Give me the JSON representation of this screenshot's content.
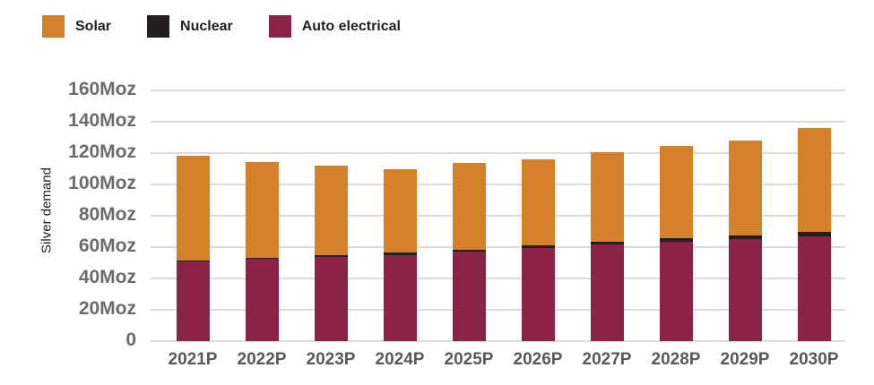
{
  "chart_data": {
    "type": "bar",
    "stacked": true,
    "title": "",
    "xlabel": "",
    "ylabel": "Silver demand",
    "ylim": [
      0,
      160
    ],
    "grid": true,
    "legend_position": "top-left",
    "y_ticks": [
      "160Moz",
      "140Moz",
      "120Moz",
      "100Moz",
      "80Moz",
      "60Moz",
      "40Moz",
      "20Moz",
      "0"
    ],
    "categories": [
      "2021P",
      "2022P",
      "2023P",
      "2024P",
      "2025P",
      "2026P",
      "2027P",
      "2028P",
      "2029P",
      "2030P"
    ],
    "series": [
      {
        "name": "Auto electrical",
        "color": "#8b2345",
        "values": [
          51,
          52.5,
          54,
          55,
          57,
          59.5,
          61.5,
          63.5,
          65,
          67
        ]
      },
      {
        "name": "Nuclear",
        "color": "#231f20",
        "values": [
          0.5,
          0.8,
          1,
          1.5,
          1.5,
          1.7,
          1.8,
          2,
          2.2,
          2.8
        ]
      },
      {
        "name": "Solar",
        "color": "#d5812c",
        "values": [
          67,
          61,
          57,
          53,
          55,
          55,
          57,
          59,
          61,
          66
        ]
      }
    ],
    "legend": [
      {
        "label": "Solar",
        "color": "#d5812c"
      },
      {
        "label": "Nuclear",
        "color": "#231f20"
      },
      {
        "label": "Auto electrical",
        "color": "#8b2345"
      }
    ],
    "totals": [
      118.5,
      114.3,
      112,
      109.5,
      113.5,
      116.2,
      120.3,
      124.5,
      128.2,
      135.8
    ],
    "colors": {
      "gridline": "#dbdbdb",
      "y_tick_text": "#6b6b6b",
      "x_tick_text": "#58595b",
      "legend_text": "#231f20"
    }
  }
}
